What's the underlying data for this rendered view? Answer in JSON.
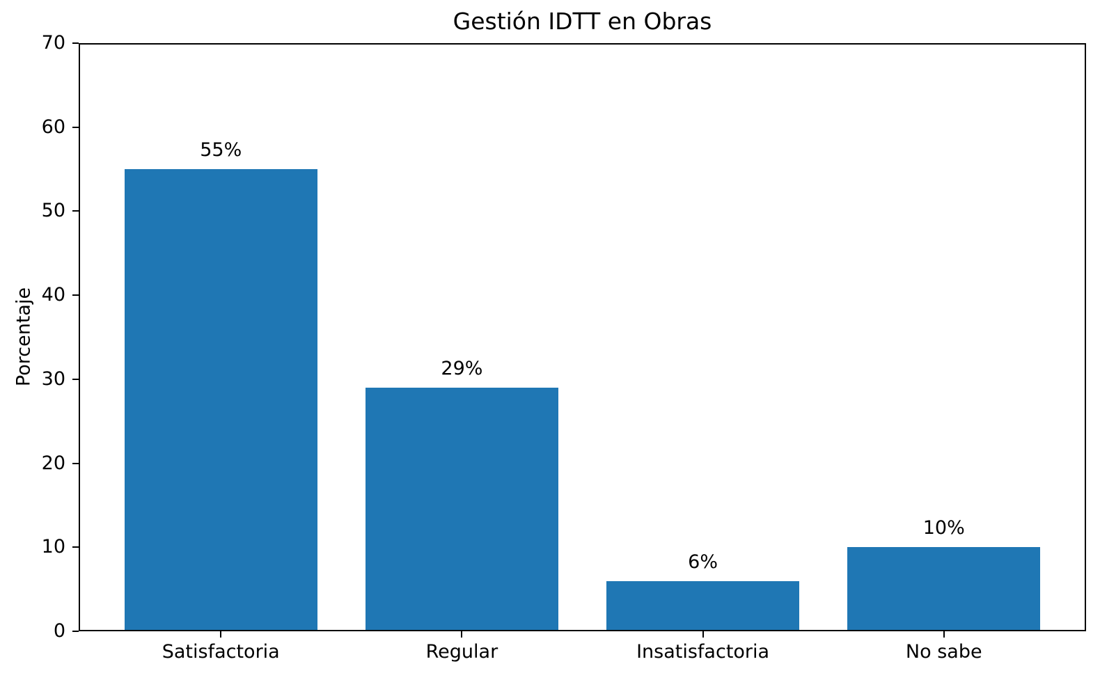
{
  "figure": {
    "background": "#ffffff"
  },
  "chart_data": {
    "type": "bar",
    "title": "Gestión IDTT en Obras",
    "xlabel": "",
    "ylabel": "Porcentaje",
    "categories": [
      "Satisfactoria",
      "Regular",
      "Insatisfactoria",
      "No sabe"
    ],
    "values": [
      55,
      29,
      6,
      10
    ],
    "value_labels": [
      "55%",
      "29%",
      "6%",
      "10%"
    ],
    "ylim": [
      0,
      70
    ],
    "yticks": [
      0,
      10,
      20,
      30,
      40,
      50,
      60,
      70
    ],
    "bar_color": "#1f77b4",
    "axis_color": "#000000",
    "text_color": "#000000",
    "grid": false,
    "legend": null
  }
}
